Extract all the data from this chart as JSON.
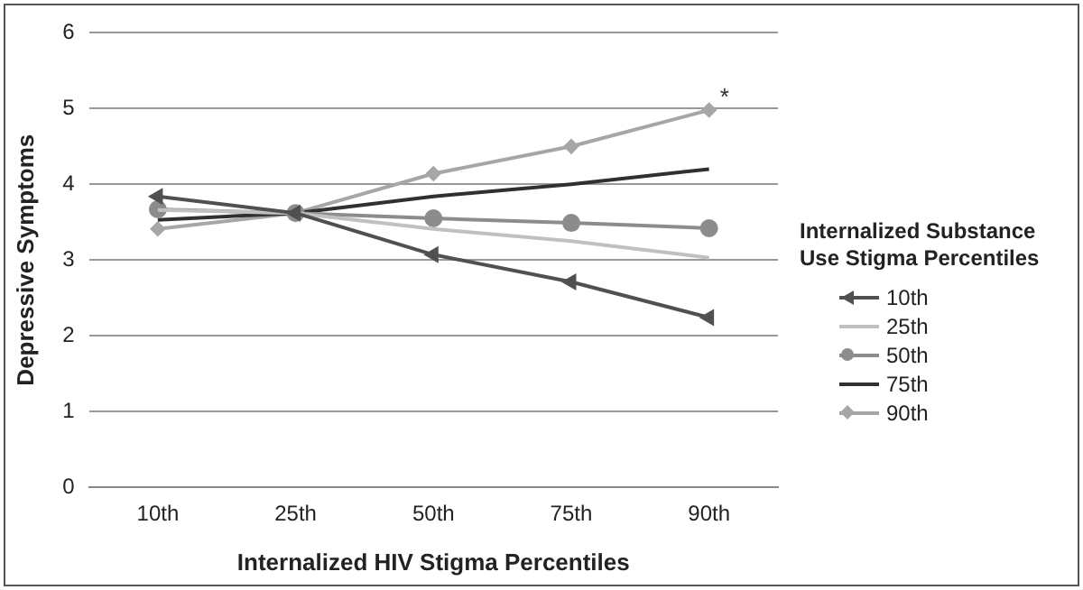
{
  "chart_data": {
    "type": "line",
    "xlabel": "Internalized HIV Stigma Percentiles",
    "ylabel": "Depressive Symptoms",
    "legend_title": "Internalized Substance Use Stigma Percentiles",
    "categories": [
      "10th",
      "25th",
      "50th",
      "75th",
      "90th"
    ],
    "series": [
      {
        "name": "10th",
        "color": "#505050",
        "marker": "triangle",
        "values": [
          3.84,
          3.62,
          3.07,
          2.71,
          2.24
        ]
      },
      {
        "name": "25th",
        "color": "#c0c0c0",
        "marker": "none",
        "values": [
          3.66,
          3.62,
          3.41,
          3.25,
          3.03
        ]
      },
      {
        "name": "50th",
        "color": "#8c8c8c",
        "marker": "circle",
        "values": [
          3.67,
          3.62,
          3.55,
          3.49,
          3.42
        ]
      },
      {
        "name": "75th",
        "color": "#303030",
        "marker": "none",
        "values": [
          3.53,
          3.62,
          3.84,
          4.0,
          4.2
        ]
      },
      {
        "name": "90th",
        "color": "#a6a6a6",
        "marker": "diamond",
        "values": [
          3.41,
          3.62,
          4.14,
          4.5,
          4.98
        ]
      }
    ],
    "ylim": [
      0,
      6
    ],
    "yticks": [
      0,
      1,
      2,
      3,
      4,
      5,
      6
    ],
    "grid": "y",
    "legend": "right",
    "annotations": [
      "*"
    ]
  }
}
